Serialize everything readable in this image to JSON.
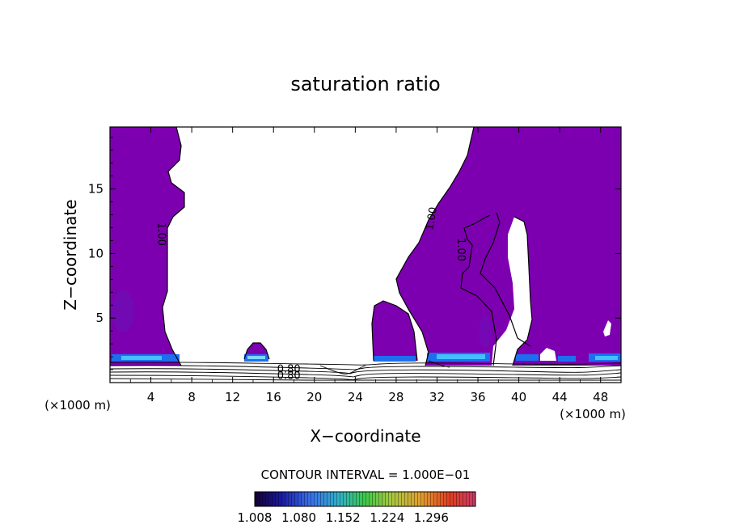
{
  "chart_data": {
    "type": "contour",
    "title": "saturation ratio",
    "xlabel": "X−coordinate",
    "ylabel": "Z−coordinate",
    "x_unit_left": "(×1000 m)",
    "x_unit_right": "(×1000 m)",
    "xlim": [
      0,
      50
    ],
    "ylim": [
      0,
      19.8
    ],
    "x_ticks": [
      4,
      8,
      12,
      16,
      20,
      24,
      28,
      32,
      36,
      40,
      44,
      48
    ],
    "y_ticks": [
      5,
      10,
      15
    ],
    "contour_interval_text": "CONTOUR INTERVAL = 1.000E−01",
    "contour_labels": [
      {
        "text": "1.00",
        "x": 5.0,
        "z": 11.5,
        "rotate": 90
      },
      {
        "text": "1.00",
        "x": 31.5,
        "z": 12.7,
        "rotate": -80
      },
      {
        "text": "1.00",
        "x": 34.3,
        "z": 10.3,
        "rotate": 90
      },
      {
        "text": "0.80",
        "x": 17.5,
        "z": 1.0,
        "rotate": 0
      },
      {
        "text": "0.80",
        "x": 17.5,
        "z": 0.5,
        "rotate": 0
      }
    ],
    "colorbar": {
      "tick_labels": [
        "1.008",
        "1.080",
        "1.152",
        "1.224",
        "1.296"
      ],
      "min": 1.008,
      "max": 1.368
    },
    "colors": {
      "saturated_fill": "#7d00b0",
      "enhanced_band": "#1e90ff",
      "contour_line": "#000000"
    }
  }
}
